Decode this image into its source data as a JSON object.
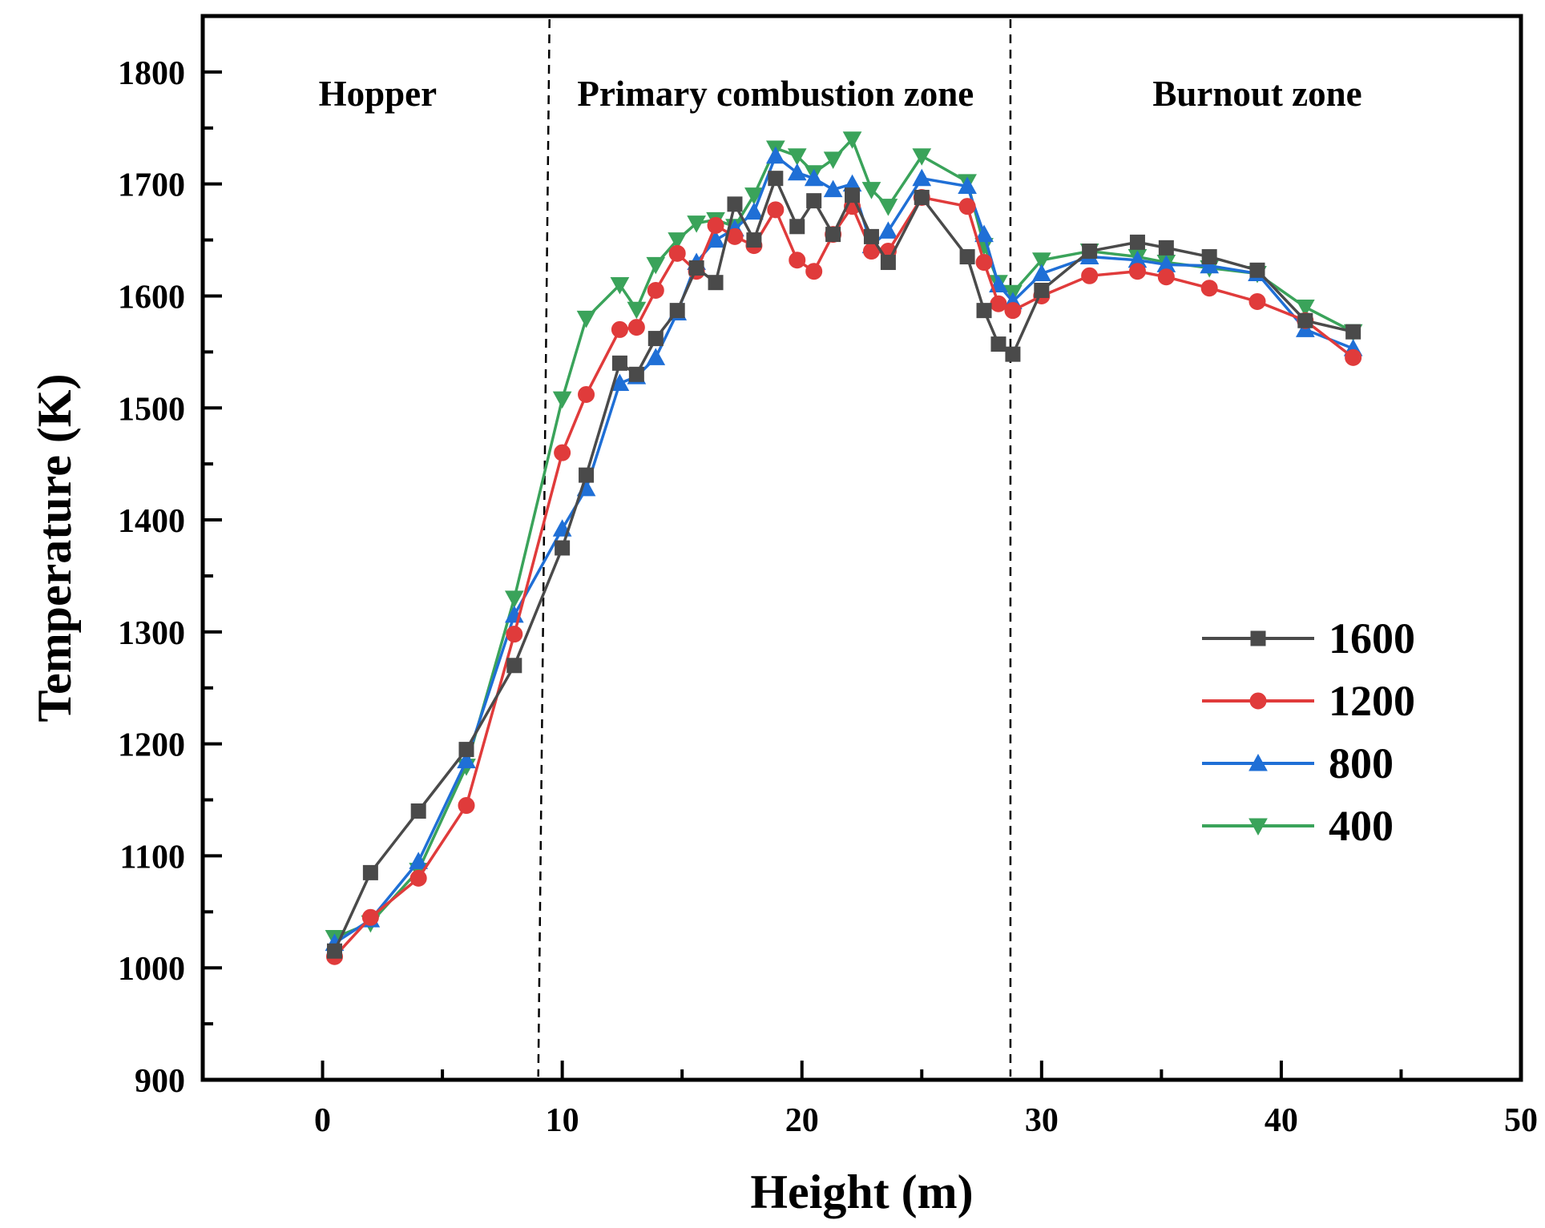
{
  "chart_data": {
    "type": "line",
    "title": "",
    "xlabel": "Height (m)",
    "ylabel": "Temperature (K)",
    "xlim": [
      -5,
      50
    ],
    "ylim": [
      900,
      1850
    ],
    "xticks": [
      0,
      10,
      20,
      30,
      40,
      50
    ],
    "yticks": [
      900,
      1000,
      1100,
      1200,
      1300,
      1400,
      1500,
      1600,
      1700,
      1800
    ],
    "xtick_labels": [
      "0",
      "10",
      "20",
      "30",
      "40",
      "50"
    ],
    "ytick_labels": [
      "900",
      "1000",
      "1100",
      "1200",
      "1300",
      "1400",
      "1500",
      "1600",
      "1700",
      "1800"
    ],
    "zone_dividers": [
      9.2,
      28.7
    ],
    "zones": [
      {
        "label": "Hopper",
        "x_center": 2.3
      },
      {
        "label": "Primary combustion zone",
        "x_center": 18.9
      },
      {
        "label": "Burnout zone",
        "x_center": 39.0
      }
    ],
    "legend_position": "right",
    "series": [
      {
        "name": "1600",
        "color": "#4a4a4a",
        "marker": "square",
        "x": [
          0.5,
          2,
          4,
          6,
          8,
          10,
          11,
          12.4,
          13.1,
          13.9,
          14.8,
          15.6,
          16.4,
          17.2,
          18,
          18.9,
          19.8,
          20.5,
          21.3,
          22.1,
          22.9,
          23.6,
          25,
          26.9,
          27.6,
          28.2,
          28.8,
          30,
          32,
          34,
          35.2,
          37,
          39,
          41,
          43
        ],
        "values": [
          1015,
          1085,
          1140,
          1195,
          1270,
          1375,
          1440,
          1540,
          1530,
          1562,
          1587,
          1625,
          1612,
          1682,
          1650,
          1705,
          1662,
          1685,
          1655,
          1690,
          1653,
          1630,
          1688,
          1635,
          1587,
          1557,
          1548,
          1605,
          1640,
          1648,
          1643,
          1635,
          1623,
          1578,
          1568
        ]
      },
      {
        "name": "1200",
        "color": "#e03b3b",
        "marker": "circle",
        "x": [
          0.5,
          2,
          4,
          6,
          8,
          10,
          11,
          12.4,
          13.1,
          13.9,
          14.8,
          15.6,
          16.4,
          17.2,
          18,
          18.9,
          19.8,
          20.5,
          21.3,
          22.1,
          22.9,
          23.6,
          25,
          26.9,
          27.6,
          28.2,
          28.8,
          30,
          32,
          34,
          35.2,
          37,
          39,
          41,
          43
        ],
        "values": [
          1010,
          1045,
          1080,
          1145,
          1298,
          1460,
          1512,
          1570,
          1572,
          1605,
          1638,
          1622,
          1663,
          1653,
          1645,
          1677,
          1632,
          1622,
          1655,
          1680,
          1640,
          1640,
          1688,
          1680,
          1630,
          1593,
          1587,
          1600,
          1618,
          1622,
          1617,
          1607,
          1595,
          1578,
          1545
        ]
      },
      {
        "name": "800",
        "color": "#1f6fd6",
        "marker": "triangle-up",
        "x": [
          0.5,
          2,
          4,
          6,
          8,
          10,
          11,
          12.4,
          13.1,
          13.9,
          14.8,
          15.6,
          16.4,
          17.2,
          18,
          18.9,
          19.8,
          20.5,
          21.3,
          22.1,
          22.9,
          23.6,
          25,
          26.9,
          27.6,
          28.2,
          28.8,
          30,
          32,
          34,
          35.2,
          37,
          39,
          41,
          43
        ],
        "values": [
          1022,
          1043,
          1095,
          1185,
          1315,
          1392,
          1428,
          1522,
          1528,
          1545,
          1585,
          1630,
          1650,
          1660,
          1675,
          1725,
          1710,
          1705,
          1695,
          1700,
          1645,
          1658,
          1705,
          1698,
          1655,
          1610,
          1595,
          1620,
          1635,
          1632,
          1628,
          1627,
          1620,
          1570,
          1553
        ]
      },
      {
        "name": "400",
        "color": "#3aa35a",
        "marker": "triangle-down",
        "x": [
          0.5,
          2,
          4,
          6,
          8,
          10,
          11,
          12.4,
          13.1,
          13.9,
          14.8,
          15.6,
          16.4,
          17.2,
          18,
          18.9,
          19.8,
          20.5,
          21.3,
          22.1,
          22.9,
          23.6,
          25,
          26.9,
          27.6,
          28.2,
          28.8,
          30,
          32,
          34,
          35.2,
          37,
          39,
          41,
          43
        ],
        "values": [
          1027,
          1040,
          1087,
          1180,
          1330,
          1508,
          1580,
          1610,
          1588,
          1628,
          1650,
          1665,
          1668,
          1662,
          1690,
          1732,
          1725,
          1710,
          1722,
          1740,
          1695,
          1680,
          1725,
          1702,
          1645,
          1612,
          1603,
          1632,
          1640,
          1635,
          1630,
          1625,
          1620,
          1590,
          1568
        ]
      }
    ]
  }
}
